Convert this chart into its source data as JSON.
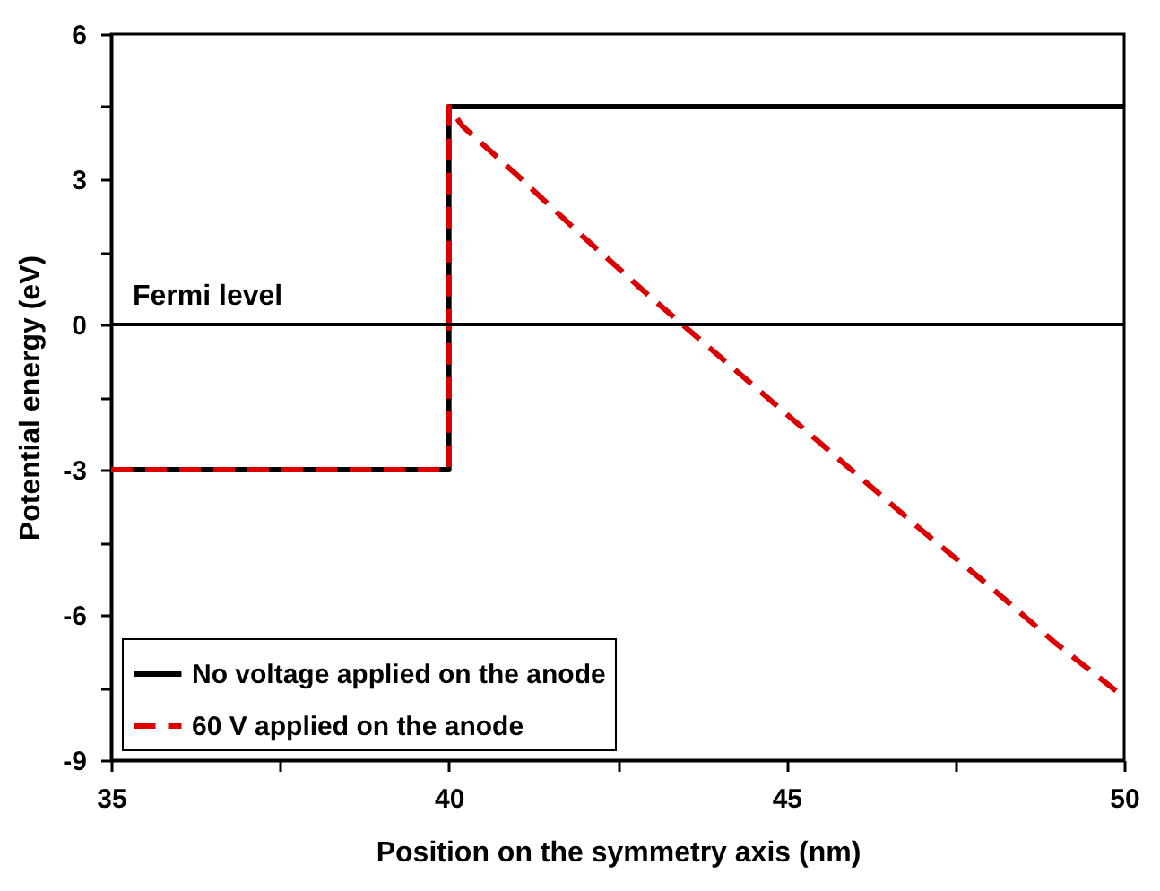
{
  "chart_data": {
    "type": "line",
    "xlabel": "Position on the symmetry axis (nm)",
    "ylabel": "Potential energy (eV)",
    "xlim": [
      35,
      50
    ],
    "ylim": [
      -9,
      6
    ],
    "xticks": [
      35,
      {
        "value": 37.5,
        "label": null
      },
      40,
      {
        "value": 42.5,
        "label": null
      },
      45,
      {
        "value": 47.5,
        "label": null
      },
      50
    ],
    "yticks": [
      -9,
      {
        "value": -7.5,
        "label": null
      },
      -6,
      {
        "value": -4.5,
        "label": null
      },
      -3,
      {
        "value": -1.5,
        "label": null
      },
      0,
      {
        "value": 1.5,
        "label": null
      },
      3,
      {
        "value": 4.5,
        "label": null
      },
      6
    ],
    "series": [
      {
        "name": "No voltage applied on the anode",
        "color": "#000000",
        "line_style": "solid",
        "x": [
          35,
          40,
          40,
          50
        ],
        "values": [
          -3,
          -3,
          4.5,
          4.5
        ]
      },
      {
        "name": "60 V applied on the anode",
        "color": "#dd0000",
        "line_style": "dashed",
        "x": [
          35,
          40,
          40,
          40.2,
          41,
          42,
          43,
          44,
          45,
          46,
          47,
          48,
          49,
          50
        ],
        "values": [
          -3,
          -3,
          4.5,
          4.1,
          3.1,
          1.8,
          0.55,
          -0.65,
          -1.85,
          -3.05,
          -4.25,
          -5.4,
          -6.6,
          -7.7
        ]
      }
    ],
    "ref_lines": [
      {
        "axis": "y",
        "value": 0,
        "label": "Fermi level",
        "color": "#000000"
      }
    ],
    "legend": "bottom left"
  }
}
